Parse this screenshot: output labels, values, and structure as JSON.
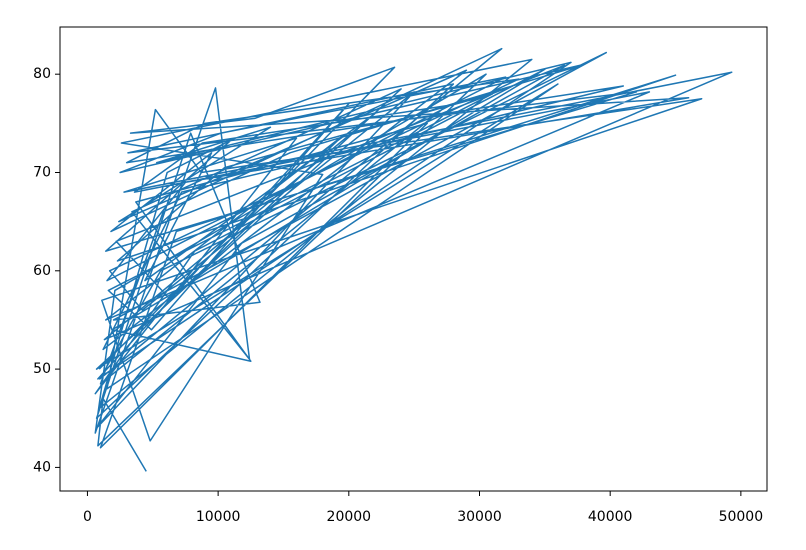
{
  "chart_data": {
    "type": "line",
    "color": "#1f77b4",
    "x": [
      4500,
      1200,
      800,
      30500,
      2100,
      600,
      9800,
      12400,
      3400,
      24000,
      700,
      36000,
      1500,
      5200,
      8700,
      47000,
      1100,
      4800,
      18000,
      2600,
      34000,
      900,
      6100,
      11000,
      1400,
      42000,
      3100,
      28000,
      700,
      7900,
      13200,
      2000,
      39700,
      5600,
      950,
      31700,
      1800,
      9500,
      4400,
      22000,
      1300,
      49300,
      2800,
      16000,
      600,
      8200,
      35000,
      1900,
      12500,
      3700,
      26000,
      1000,
      6800,
      45000,
      2300,
      10500,
      31000,
      1600,
      4900,
      20000,
      800,
      37000,
      5300,
      14000,
      2400,
      29000,
      1200,
      7200,
      41000,
      3000,
      9000,
      33000,
      1700,
      4200,
      25000,
      700,
      11800,
      36500,
      2200,
      6400,
      19500,
      1400,
      43000,
      3600,
      8800,
      27500,
      1000,
      5800,
      15500,
      38000,
      2500,
      10200,
      32000,
      1500,
      7500,
      46000,
      3300,
      12800,
      23500,
      900
    ],
    "values": [
      39.6,
      47,
      42.2,
      80,
      58,
      43.5,
      78.6,
      51,
      66,
      78.5,
      50,
      79,
      48,
      76.4,
      70,
      77.5,
      57,
      42.7,
      69.8,
      73,
      81.5,
      46,
      70,
      73.3,
      62,
      78.2,
      72,
      79,
      45,
      74,
      56.8,
      55,
      82.2,
      60,
      49,
      82.6,
      64,
      72,
      59,
      76,
      53,
      80.2,
      68,
      73.5,
      47.5,
      62,
      80.5,
      54,
      50.8,
      67,
      75,
      42,
      64,
      79.9,
      61,
      70.5,
      78,
      58,
      54,
      77,
      49,
      81.2,
      71,
      74.6,
      65,
      80.4,
      52,
      68,
      78.8,
      71,
      75,
      79.5,
      60,
      56,
      78.2,
      44,
      62.8,
      80.9,
      63,
      57,
      73.7,
      55,
      78.2,
      68,
      73,
      76.8,
      48.5,
      66,
      72,
      81,
      70,
      74,
      79.7,
      59,
      69,
      77.6,
      74,
      75.5,
      80.7,
      50
    ],
    "xlim": [
      -2100,
      52000
    ],
    "ylim": [
      37.6,
      84.8
    ],
    "xticks": [
      0,
      10000,
      20000,
      30000,
      40000,
      50000
    ],
    "yticks": [
      40,
      50,
      60,
      70,
      80
    ]
  }
}
